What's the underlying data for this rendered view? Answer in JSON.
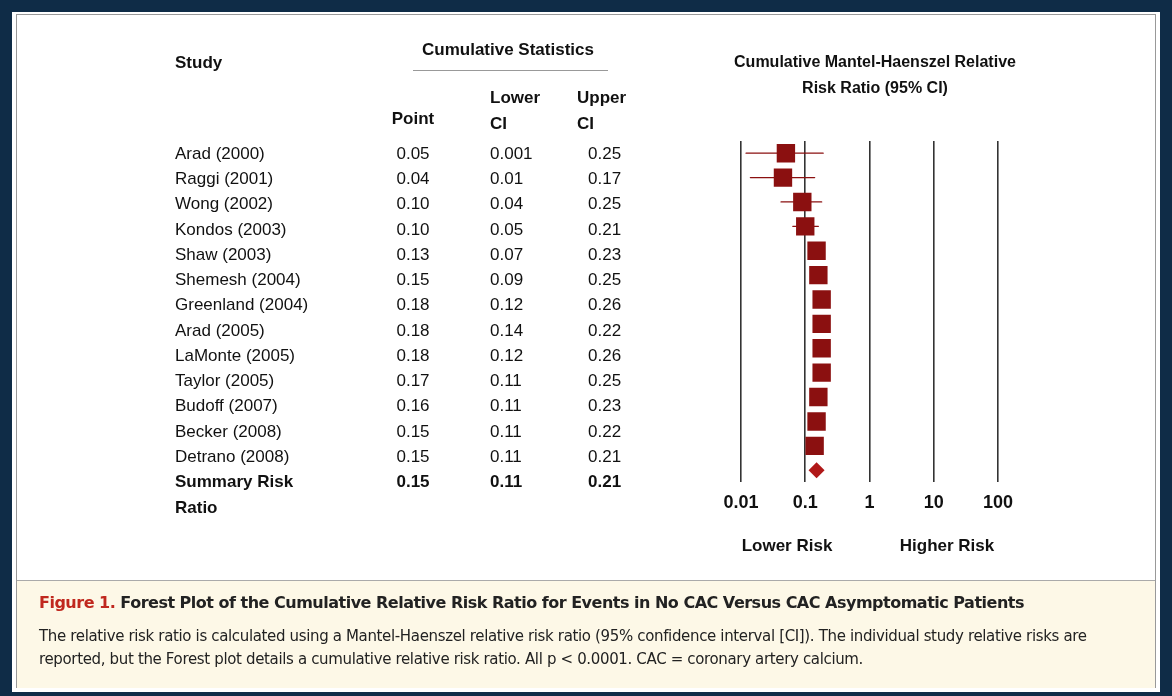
{
  "chart_data": [
    {
      "type": "other",
      "title": "Cumulative Statistics",
      "annotations": [
        "Study"
      ],
      "categories": [
        "Arad (2000)",
        "Raggi (2001)",
        "Wong (2002)",
        "Kondos (2003)",
        "Shaw (2003)",
        "Shemesh (2004)",
        "Greenland (2004)",
        "Arad (2005)",
        "LaMonte (2005)",
        "Taylor (2005)",
        "Budoff (2007)",
        "Becker (2008)",
        "Detrano (2008)",
        "Summary Risk Ratio"
      ],
      "series": [
        {
          "name": "Point",
          "values": [
            0.05,
            0.04,
            0.1,
            0.1,
            0.13,
            0.15,
            0.18,
            0.18,
            0.18,
            0.17,
            0.16,
            0.15,
            0.15,
            0.15
          ],
          "value_labels": [
            "0.05",
            "0.04",
            "0.10",
            "0.10",
            "0.13",
            "0.15",
            "0.18",
            "0.18",
            "0.18",
            "0.17",
            "0.16",
            "0.15",
            "0.15",
            "0.15"
          ]
        },
        {
          "name": "Lower CI",
          "values": [
            0.001,
            0.01,
            0.04,
            0.05,
            0.07,
            0.09,
            0.12,
            0.14,
            0.12,
            0.11,
            0.11,
            0.11,
            0.11,
            0.11
          ],
          "value_labels": [
            "0.001",
            "0.01",
            "0.04",
            "0.05",
            "0.07",
            "0.09",
            "0.12",
            "0.14",
            "0.12",
            "0.11",
            "0.11",
            "0.11",
            "0.11",
            "0.11"
          ]
        },
        {
          "name": "Upper CI",
          "values": [
            0.25,
            0.17,
            0.25,
            0.21,
            0.23,
            0.25,
            0.26,
            0.22,
            0.26,
            0.25,
            0.23,
            0.22,
            0.21,
            0.21
          ],
          "value_labels": [
            "0.25",
            "0.17",
            "0.25",
            "0.21",
            "0.23",
            "0.25",
            "0.26",
            "0.22",
            "0.26",
            "0.25",
            "0.23",
            "0.22",
            "0.21",
            "0.21"
          ]
        }
      ]
    },
    {
      "type": "scatter",
      "orientation": "horizontal",
      "log": "x",
      "grid": "x",
      "tick_labels": "x",
      "title": "Cumulative Mantel-Haenszel Relative Risk Ratio (95% CI)",
      "categories": [
        null,
        null,
        null,
        null,
        null,
        null,
        null,
        null,
        null,
        null,
        null,
        null,
        null,
        null
      ],
      "xlim": [
        0.01,
        100
      ],
      "xticks": [
        0.01,
        0.1,
        1,
        10,
        100
      ],
      "series": [
        {
          "color": "#8b1010",
          "marker": "square",
          "values": [
            0.05,
            0.045,
            0.09,
            0.1,
            0.15,
            0.16,
            0.18,
            0.18,
            0.18,
            0.18,
            0.16,
            0.15,
            0.14,
            null
          ],
          "errors": [
            [
              0.012,
              0.19
            ],
            [
              0.014,
              0.14
            ],
            [
              0.042,
              0.18
            ],
            [
              0.064,
              0.16
            ],
            null,
            null,
            null,
            null,
            null,
            null,
            null,
            null,
            null,
            null
          ]
        },
        {
          "color": "#b01818",
          "marker": "diamond",
          "values": [
            null,
            null,
            null,
            null,
            null,
            null,
            null,
            null,
            null,
            null,
            null,
            null,
            null,
            0.15
          ]
        }
      ],
      "annotations": [
        "Lower Risk",
        "Higher Risk",
        "Figure 1.",
        "Forest Plot of the Cumulative Relative Risk Ratio for Events in No CAC Versus CAC Asymptomatic Patients",
        "The relative risk ratio is calculated using a Mantel-Haenszel relative risk ratio (95% confidence interval [CI]). The individual study relative risks are reported, but the Forest plot details a cumulative relative risk ratio. All p < 0.0001. CAC = coronary artery calcium."
      ]
    }
  ]
}
